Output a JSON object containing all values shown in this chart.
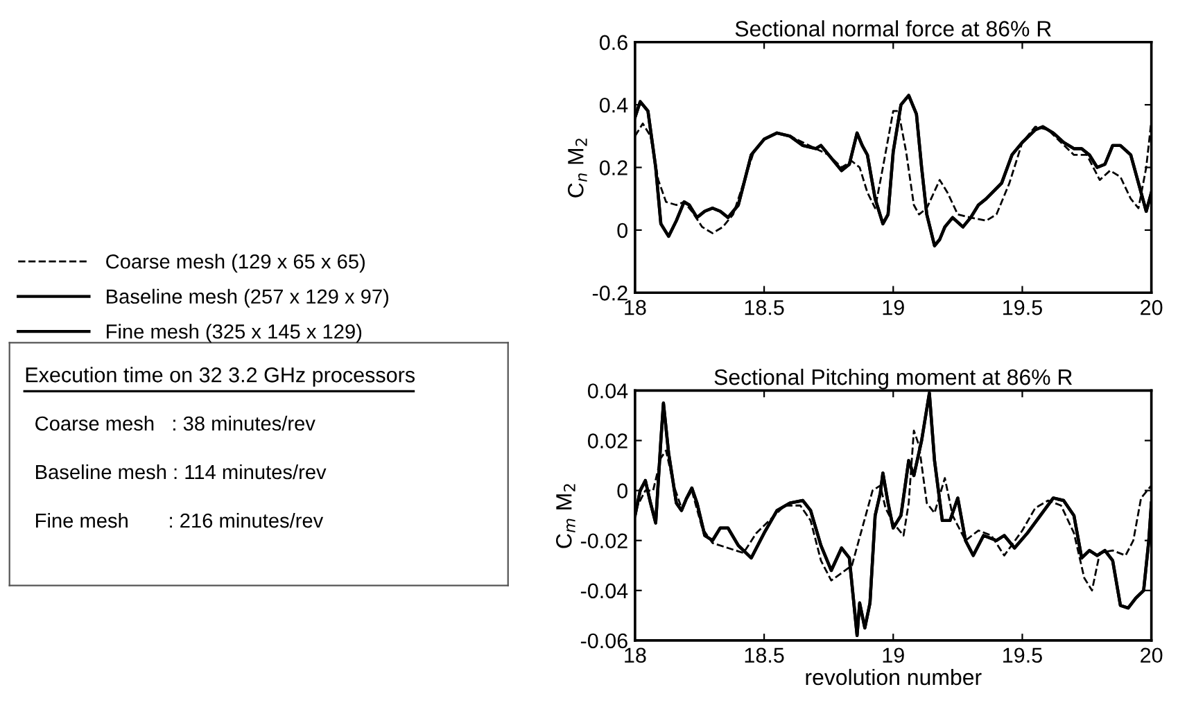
{
  "chart_data": [
    {
      "type": "line",
      "title": "Sectional normal force at 86% R",
      "ylabel": "C$_{n}$ M$_{2}$",
      "xlim": [
        18,
        20
      ],
      "ylim": [
        -0.2,
        0.6
      ],
      "xticks": [
        18,
        18.5,
        19,
        19.5,
        20
      ],
      "yticks": [
        -0.2,
        0,
        0.2,
        0.4,
        0.6
      ],
      "grid": false,
      "legend": "left",
      "tick_labels": true,
      "series": [
        {
          "name": "Coarse mesh (129 x 65 x 65)",
          "color": "#000000",
          "line_style": "dashed",
          "x": [
            18.0,
            18.03,
            18.06,
            18.09,
            18.12,
            18.16,
            18.19,
            18.22,
            18.26,
            18.3,
            18.34,
            18.38,
            18.42,
            18.46,
            18.5,
            18.55,
            18.6,
            18.7,
            18.75,
            18.8,
            18.84,
            18.87,
            18.9,
            18.93,
            18.96,
            19.0,
            19.02,
            19.05,
            19.08,
            19.1,
            19.13,
            19.18,
            19.21,
            19.25,
            19.3,
            19.36,
            19.4,
            19.45,
            19.5,
            19.55,
            19.6,
            19.65,
            19.7,
            19.75,
            19.8,
            19.84,
            19.88,
            19.92,
            19.95,
            19.98,
            20.0
          ],
          "values": [
            0.3,
            0.34,
            0.3,
            0.16,
            0.09,
            0.08,
            0.09,
            0.06,
            0.01,
            -0.01,
            0.01,
            0.05,
            0.15,
            0.25,
            0.29,
            0.31,
            0.3,
            0.26,
            0.24,
            0.2,
            0.22,
            0.2,
            0.12,
            0.07,
            0.2,
            0.38,
            0.38,
            0.25,
            0.08,
            0.05,
            0.07,
            0.16,
            0.12,
            0.05,
            0.04,
            0.03,
            0.05,
            0.15,
            0.28,
            0.33,
            0.32,
            0.28,
            0.24,
            0.24,
            0.16,
            0.19,
            0.17,
            0.1,
            0.07,
            0.2,
            0.35
          ]
        },
        {
          "name": "Baseline mesh (257 x 129 x 97)",
          "color": "#000000",
          "line_style": "solid",
          "x": [
            18.0,
            18.02,
            18.05,
            18.08,
            18.1,
            18.13,
            18.16,
            18.19,
            18.21,
            18.24,
            18.27,
            18.3,
            18.33,
            18.36,
            18.4,
            18.45,
            18.5,
            18.55,
            18.6,
            18.65,
            18.7,
            18.72,
            18.75,
            18.8,
            18.83,
            18.86,
            18.88,
            18.9,
            18.93,
            18.96,
            18.98,
            19.0,
            19.03,
            19.06,
            19.09,
            19.11,
            19.13,
            19.16,
            19.18,
            19.2,
            19.23,
            19.27,
            19.3,
            19.33,
            19.36,
            19.42,
            19.46,
            19.5,
            19.55,
            19.58,
            19.62,
            19.66,
            19.7,
            19.73,
            19.76,
            19.79,
            19.82,
            19.85,
            19.88,
            19.92,
            19.95,
            19.98,
            20.0
          ],
          "values": [
            0.36,
            0.41,
            0.38,
            0.2,
            0.02,
            -0.02,
            0.03,
            0.09,
            0.08,
            0.04,
            0.06,
            0.07,
            0.06,
            0.04,
            0.08,
            0.24,
            0.29,
            0.31,
            0.3,
            0.27,
            0.26,
            0.27,
            0.24,
            0.19,
            0.21,
            0.31,
            0.27,
            0.24,
            0.1,
            0.02,
            0.05,
            0.25,
            0.4,
            0.43,
            0.37,
            0.2,
            0.05,
            -0.05,
            -0.03,
            0.01,
            0.04,
            0.01,
            0.04,
            0.08,
            0.1,
            0.15,
            0.24,
            0.28,
            0.32,
            0.33,
            0.31,
            0.28,
            0.26,
            0.26,
            0.24,
            0.2,
            0.21,
            0.27,
            0.27,
            0.24,
            0.15,
            0.06,
            0.12
          ]
        },
        {
          "name": "Fine mesh (325 x 145 x 129)",
          "color": "#000000",
          "line_style": "solid",
          "x": [
            18.0,
            18.02,
            18.05,
            18.08,
            18.1,
            18.13,
            18.16,
            18.19,
            18.21,
            18.24,
            18.27,
            18.3,
            18.33,
            18.36,
            18.4,
            18.45,
            18.5,
            18.55,
            18.6,
            18.65,
            18.7,
            18.72,
            18.75,
            18.8,
            18.83,
            18.86,
            18.88,
            18.9,
            18.93,
            18.96,
            18.98,
            19.0,
            19.03,
            19.06,
            19.09,
            19.11,
            19.13,
            19.16,
            19.18,
            19.2,
            19.23,
            19.27,
            19.3,
            19.33,
            19.36,
            19.42,
            19.46,
            19.5,
            19.55,
            19.58,
            19.62,
            19.66,
            19.7,
            19.73,
            19.76,
            19.79,
            19.82,
            19.85,
            19.88,
            19.92,
            19.95,
            19.98,
            20.0
          ],
          "values": [
            0.36,
            0.41,
            0.38,
            0.2,
            0.02,
            -0.02,
            0.03,
            0.09,
            0.08,
            0.04,
            0.06,
            0.07,
            0.06,
            0.04,
            0.08,
            0.24,
            0.29,
            0.31,
            0.3,
            0.27,
            0.26,
            0.27,
            0.24,
            0.19,
            0.21,
            0.31,
            0.27,
            0.24,
            0.1,
            0.02,
            0.05,
            0.25,
            0.4,
            0.43,
            0.37,
            0.2,
            0.05,
            -0.05,
            -0.03,
            0.01,
            0.04,
            0.01,
            0.04,
            0.08,
            0.1,
            0.15,
            0.24,
            0.28,
            0.32,
            0.33,
            0.31,
            0.28,
            0.26,
            0.26,
            0.24,
            0.2,
            0.21,
            0.27,
            0.27,
            0.24,
            0.15,
            0.06,
            0.12
          ]
        }
      ]
    },
    {
      "type": "line",
      "title": "Sectional Pitching moment at 86% R",
      "xlabel": "revolution number",
      "ylabel": "C$_{m}$ M$_{2}$",
      "xlim": [
        18,
        20
      ],
      "ylim": [
        -0.06,
        0.04
      ],
      "xticks": [
        18,
        18.5,
        19,
        19.5,
        20
      ],
      "yticks": [
        -0.06,
        -0.04,
        -0.02,
        0,
        0.02,
        0.04
      ],
      "grid": false,
      "series": [
        {
          "color": "#000000",
          "line_style": "dashed",
          "x": [
            18.0,
            18.04,
            18.07,
            18.1,
            18.12,
            18.15,
            18.18,
            18.22,
            18.26,
            18.3,
            18.36,
            18.42,
            18.47,
            18.52,
            18.58,
            18.64,
            18.68,
            18.72,
            18.76,
            18.8,
            18.84,
            18.88,
            18.92,
            18.95,
            18.97,
            19.0,
            19.04,
            19.06,
            19.08,
            19.1,
            19.13,
            19.16,
            19.2,
            19.23,
            19.28,
            19.33,
            19.38,
            19.43,
            19.5,
            19.55,
            19.6,
            19.65,
            19.7,
            19.74,
            19.77,
            19.8,
            19.85,
            19.9,
            19.93,
            19.96,
            20.0
          ],
          "values": [
            -0.008,
            0.0,
            0.0,
            0.013,
            0.016,
            0.002,
            -0.007,
            0.0,
            -0.015,
            -0.021,
            -0.023,
            -0.025,
            -0.017,
            -0.012,
            -0.006,
            -0.006,
            -0.012,
            -0.028,
            -0.036,
            -0.033,
            -0.03,
            -0.015,
            0.0,
            0.002,
            -0.007,
            -0.013,
            -0.018,
            -0.005,
            0.024,
            0.018,
            -0.005,
            -0.009,
            0.005,
            -0.01,
            -0.02,
            -0.016,
            -0.018,
            -0.026,
            -0.016,
            -0.007,
            -0.004,
            -0.006,
            -0.017,
            -0.035,
            -0.04,
            -0.025,
            -0.024,
            -0.026,
            -0.02,
            -0.003,
            0.002
          ]
        },
        {
          "color": "#000000",
          "line_style": "solid",
          "x": [
            18.0,
            18.02,
            18.04,
            18.06,
            18.08,
            18.1,
            18.11,
            18.13,
            18.16,
            18.18,
            18.2,
            18.22,
            18.24,
            18.27,
            18.3,
            18.33,
            18.36,
            18.4,
            18.45,
            18.5,
            18.55,
            18.6,
            18.65,
            18.68,
            18.72,
            18.76,
            18.8,
            18.83,
            18.86,
            18.87,
            18.89,
            18.91,
            18.93,
            18.95,
            18.96,
            18.98,
            19.0,
            19.03,
            19.06,
            19.08,
            19.11,
            19.14,
            19.16,
            19.19,
            19.22,
            19.25,
            19.28,
            19.31,
            19.35,
            19.4,
            19.43,
            19.47,
            19.52,
            19.57,
            19.62,
            19.66,
            19.7,
            19.73,
            19.76,
            19.79,
            19.82,
            19.85,
            19.88,
            19.91,
            19.94,
            19.97,
            19.99,
            20.0
          ],
          "values": [
            -0.01,
            0.0,
            0.004,
            -0.005,
            -0.013,
            0.02,
            0.035,
            0.015,
            -0.005,
            -0.008,
            -0.003,
            0.001,
            -0.005,
            -0.018,
            -0.02,
            -0.015,
            -0.015,
            -0.022,
            -0.027,
            -0.017,
            -0.008,
            -0.005,
            -0.004,
            -0.008,
            -0.022,
            -0.032,
            -0.023,
            -0.027,
            -0.058,
            -0.045,
            -0.055,
            -0.045,
            -0.01,
            -0.001,
            0.007,
            -0.005,
            -0.015,
            -0.01,
            0.012,
            0.006,
            0.02,
            0.039,
            0.012,
            -0.012,
            -0.012,
            -0.003,
            -0.02,
            -0.026,
            -0.018,
            -0.02,
            -0.018,
            -0.023,
            -0.017,
            -0.01,
            -0.003,
            -0.004,
            -0.01,
            -0.027,
            -0.024,
            -0.026,
            -0.024,
            -0.028,
            -0.046,
            -0.047,
            -0.043,
            -0.04,
            -0.02,
            -0.005
          ]
        },
        {
          "color": "#000000",
          "line_style": "solid",
          "x": [
            18.0,
            18.02,
            18.04,
            18.06,
            18.08,
            18.1,
            18.11,
            18.13,
            18.16,
            18.18,
            18.2,
            18.22,
            18.24,
            18.27,
            18.3,
            18.33,
            18.36,
            18.4,
            18.45,
            18.5,
            18.55,
            18.6,
            18.65,
            18.68,
            18.72,
            18.76,
            18.8,
            18.83,
            18.86,
            18.87,
            18.89,
            18.91,
            18.93,
            18.95,
            18.96,
            18.98,
            19.0,
            19.03,
            19.06,
            19.08,
            19.11,
            19.14,
            19.16,
            19.19,
            19.22,
            19.25,
            19.28,
            19.31,
            19.35,
            19.4,
            19.43,
            19.47,
            19.52,
            19.57,
            19.62,
            19.66,
            19.7,
            19.73,
            19.76,
            19.79,
            19.82,
            19.85,
            19.88,
            19.91,
            19.94,
            19.97,
            19.99,
            20.0
          ],
          "values": [
            -0.01,
            0.0,
            0.004,
            -0.005,
            -0.013,
            0.02,
            0.035,
            0.015,
            -0.005,
            -0.008,
            -0.003,
            0.001,
            -0.005,
            -0.018,
            -0.02,
            -0.015,
            -0.015,
            -0.022,
            -0.027,
            -0.017,
            -0.008,
            -0.005,
            -0.004,
            -0.008,
            -0.022,
            -0.032,
            -0.023,
            -0.027,
            -0.058,
            -0.045,
            -0.055,
            -0.045,
            -0.01,
            -0.001,
            0.007,
            -0.005,
            -0.015,
            -0.01,
            0.012,
            0.006,
            0.02,
            0.039,
            0.012,
            -0.012,
            -0.012,
            -0.003,
            -0.02,
            -0.026,
            -0.018,
            -0.02,
            -0.018,
            -0.023,
            -0.017,
            -0.01,
            -0.003,
            -0.004,
            -0.01,
            -0.027,
            -0.024,
            -0.026,
            -0.024,
            -0.028,
            -0.046,
            -0.047,
            -0.043,
            -0.04,
            -0.02,
            -0.005
          ]
        }
      ]
    },
    {
      "type": "other",
      "title": "Execution time on 32 3.2 GHz processors",
      "annotations": [
        "Coarse mesh   : 38 minutes/rev",
        "Baseline mesh : 114 minutes/rev",
        "Fine mesh       : 216 minutes/rev"
      ]
    }
  ]
}
